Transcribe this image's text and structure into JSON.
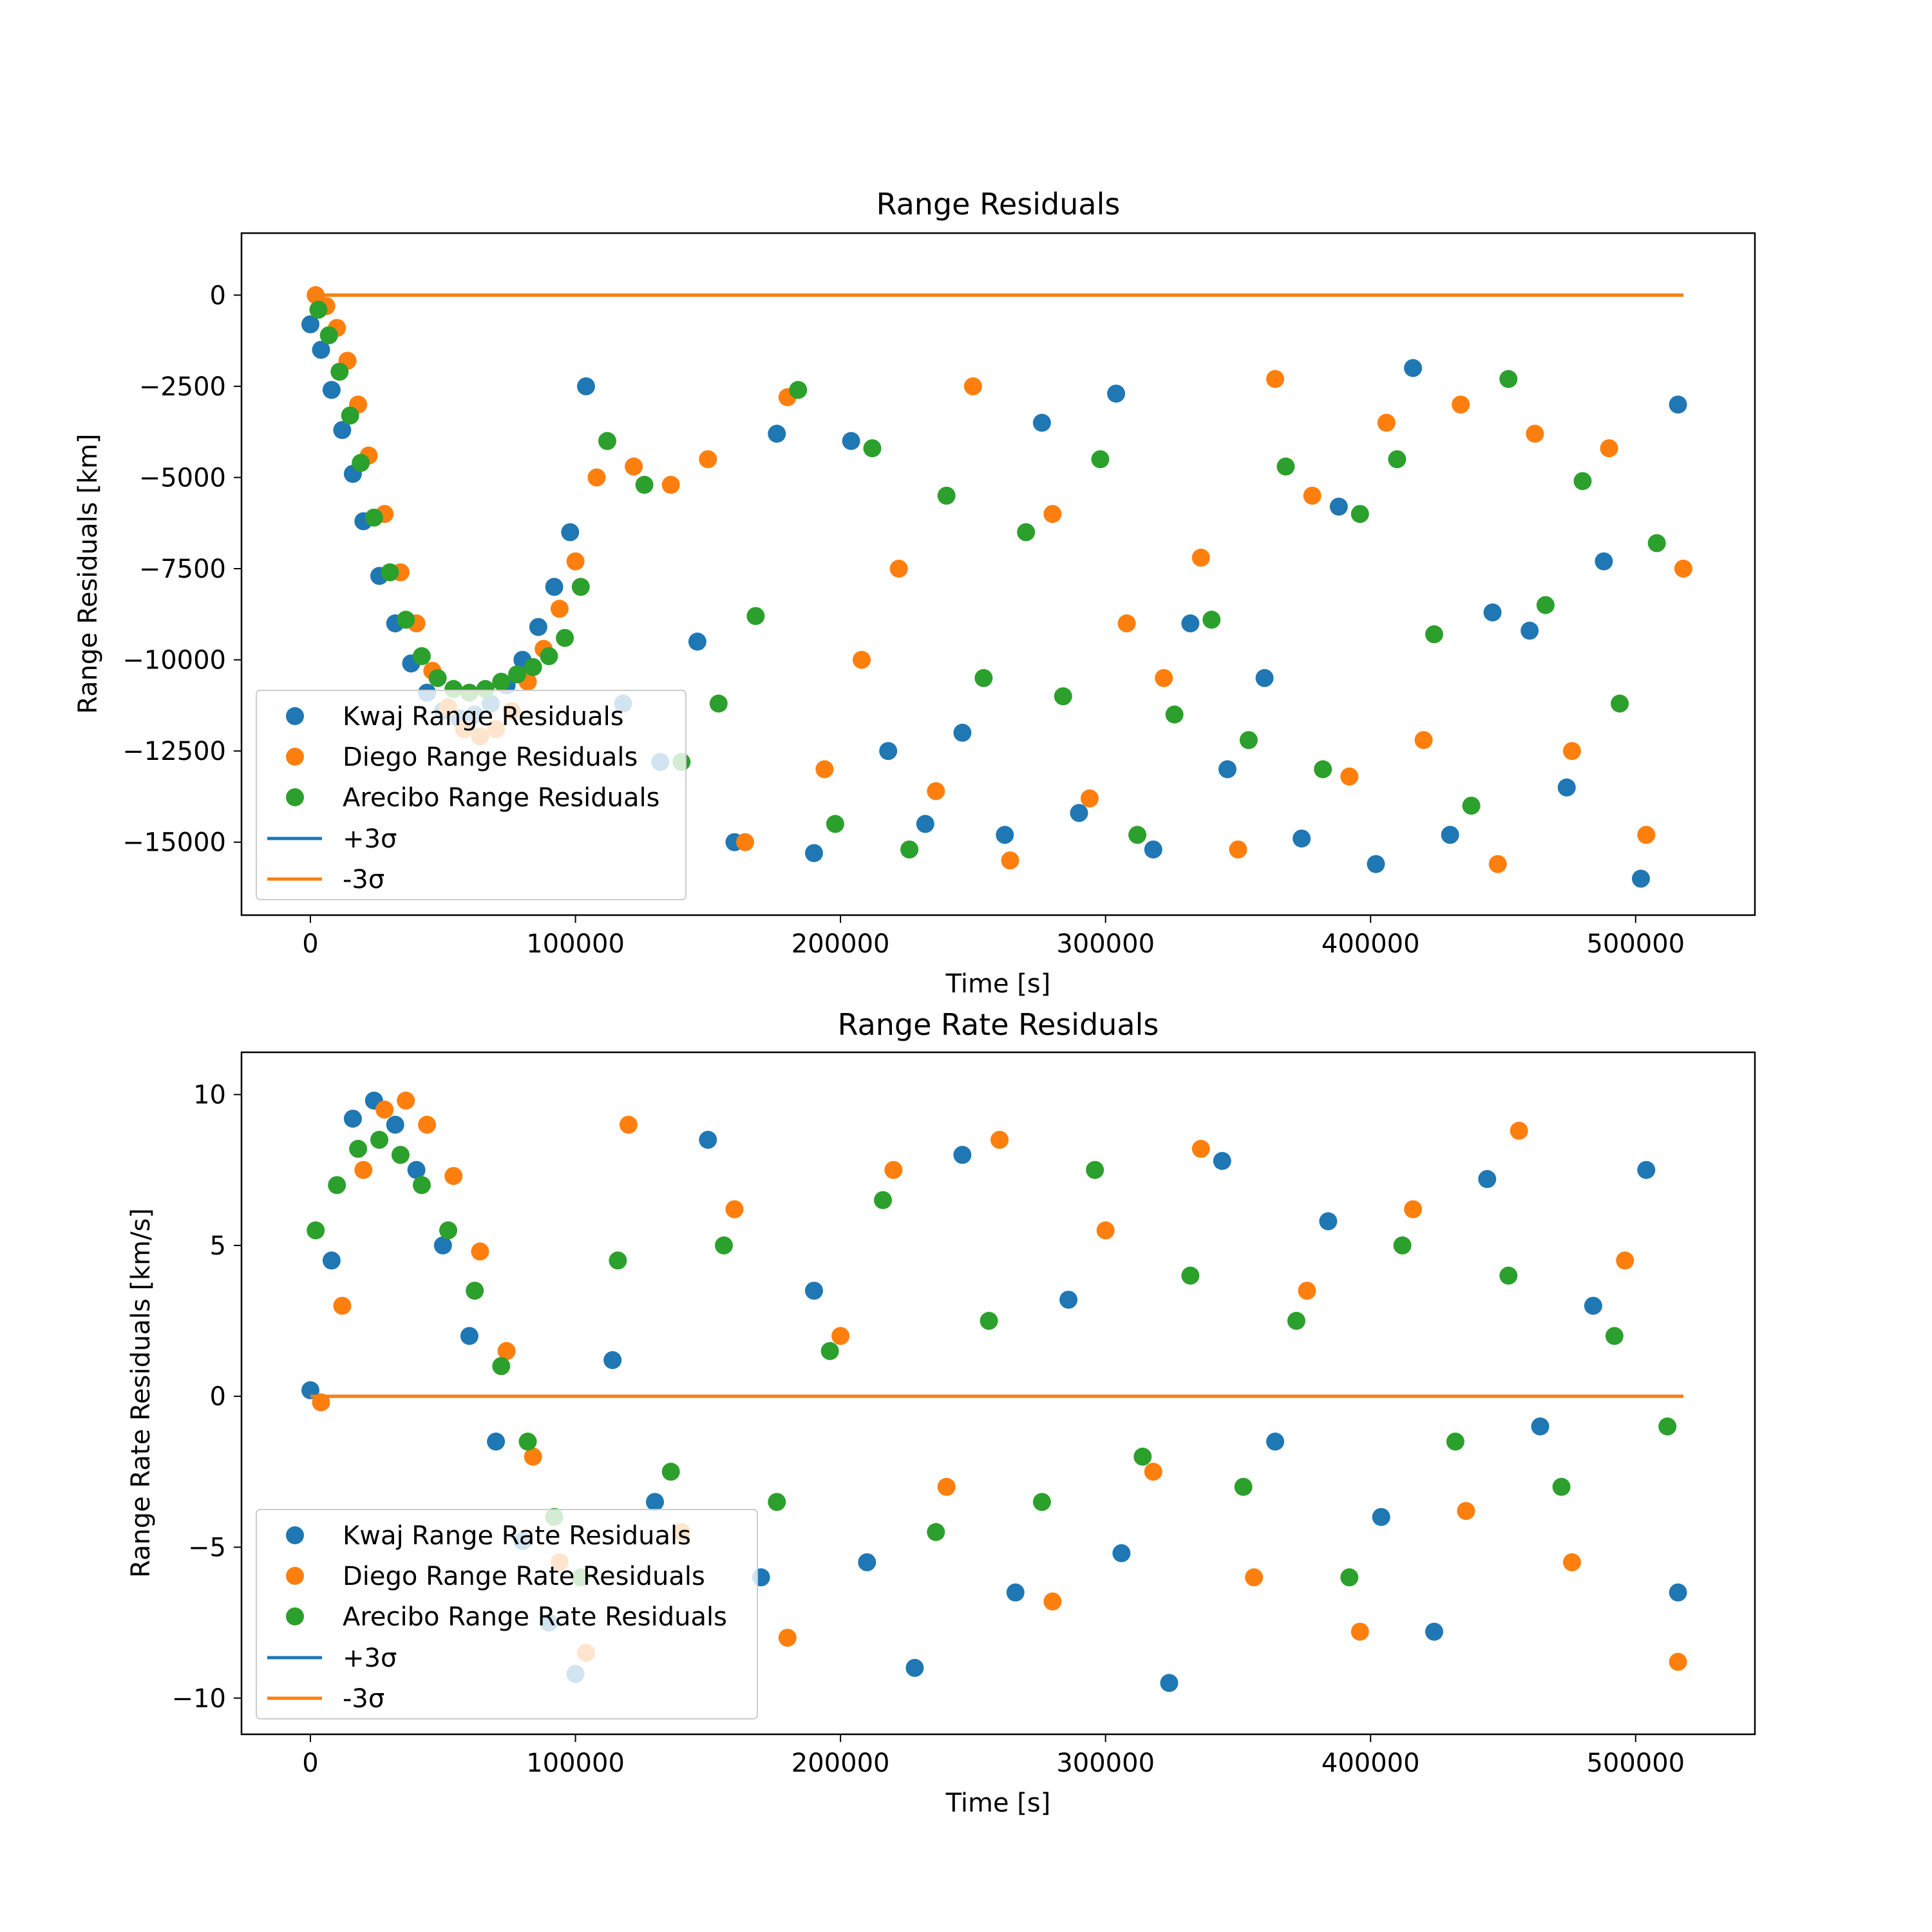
{
  "chart_data": [
    {
      "type": "scatter",
      "title": "Range Residuals",
      "xlabel": "Time [s]",
      "ylabel": "Range Residuals [km]",
      "xlim": [
        -26000,
        545000
      ],
      "ylim": [
        -17000,
        1700
      ],
      "xticks": [
        0,
        100000,
        200000,
        300000,
        400000,
        500000
      ],
      "xtick_labels": [
        "0",
        "100000",
        "200000",
        "300000",
        "400000",
        "500000"
      ],
      "yticks": [
        0,
        -2500,
        -5000,
        -7500,
        -10000,
        -12500,
        -15000
      ],
      "ytick_labels": [
        "0",
        "−2500",
        "−5000",
        "−7500",
        "−10000",
        "−12500",
        "−15000"
      ],
      "grid": false,
      "legend_position": "lower-left",
      "legend": [
        {
          "label": "Kwaj Range Residuals",
          "kind": "marker",
          "color": "#1f77b4"
        },
        {
          "label": "Diego Range Residuals",
          "kind": "marker",
          "color": "#ff7f0e"
        },
        {
          "label": "Arecibo Range Residuals",
          "kind": "marker",
          "color": "#2ca02c"
        },
        {
          "label": "+3σ",
          "kind": "line",
          "color": "#1f77b4"
        },
        {
          "label": "-3σ",
          "kind": "line",
          "color": "#ff7f0e"
        }
      ],
      "series": [
        {
          "color": "#1f77b4",
          "x": [
            0,
            4000,
            8000,
            12000,
            16000,
            20000,
            26000,
            32000,
            38000,
            44000,
            50000,
            56000,
            62000,
            68000,
            74000,
            80000,
            86000,
            92000,
            98000,
            104000,
            118000,
            132000,
            146000,
            160000,
            176000,
            190000,
            204000,
            218000,
            232000,
            246000,
            262000,
            276000,
            290000,
            304000,
            318000,
            332000,
            346000,
            360000,
            374000,
            388000,
            402000,
            416000,
            430000,
            446000,
            460000,
            474000,
            488000,
            502000,
            516000
          ],
          "y": [
            -800,
            -1500,
            -2600,
            -3700,
            -4900,
            -6200,
            -7700,
            -9000,
            -10100,
            -10900,
            -11400,
            -11600,
            -11500,
            -11200,
            -10700,
            -10000,
            -9100,
            -8000,
            -6500,
            -2500,
            -11200,
            -12800,
            -9500,
            -15000,
            -3800,
            -15300,
            -4000,
            -12500,
            -14500,
            -12000,
            -14800,
            -3500,
            -14200,
            -2700,
            -15200,
            -9000,
            -13000,
            -10500,
            -14900,
            -5800,
            -15600,
            -2000,
            -14800,
            -8700,
            -9200,
            -13500,
            -7300,
            -16000,
            -3000
          ]
        },
        {
          "color": "#ff7f0e",
          "x": [
            2000,
            6000,
            10000,
            14000,
            18000,
            22000,
            28000,
            34000,
            40000,
            46000,
            52000,
            58000,
            64000,
            70000,
            76000,
            82000,
            88000,
            94000,
            100000,
            108000,
            122000,
            136000,
            150000,
            164000,
            180000,
            194000,
            208000,
            222000,
            236000,
            250000,
            264000,
            280000,
            294000,
            308000,
            322000,
            336000,
            350000,
            364000,
            378000,
            392000,
            406000,
            420000,
            434000,
            448000,
            462000,
            476000,
            490000,
            504000,
            518000
          ],
          "y": [
            0,
            -300,
            -900,
            -1800,
            -3000,
            -4400,
            -6000,
            -7600,
            -9000,
            -10300,
            -11300,
            -11900,
            -12100,
            -11900,
            -11400,
            -10600,
            -9700,
            -8600,
            -7300,
            -5000,
            -4700,
            -5200,
            -4500,
            -15000,
            -2800,
            -13000,
            -10000,
            -7500,
            -13600,
            -2500,
            -15500,
            -6000,
            -13800,
            -9000,
            -10500,
            -7200,
            -15200,
            -2300,
            -5500,
            -13200,
            -3500,
            -12200,
            -3000,
            -15600,
            -3800,
            -12500,
            -4200,
            -14800,
            -7500
          ]
        },
        {
          "color": "#2ca02c",
          "x": [
            3000,
            7000,
            11000,
            15000,
            19000,
            24000,
            30000,
            36000,
            42000,
            48000,
            54000,
            60000,
            66000,
            72000,
            78000,
            84000,
            90000,
            96000,
            102000,
            112000,
            126000,
            140000,
            154000,
            168000,
            184000,
            198000,
            212000,
            226000,
            240000,
            254000,
            270000,
            284000,
            298000,
            312000,
            326000,
            340000,
            354000,
            368000,
            382000,
            396000,
            410000,
            424000,
            438000,
            452000,
            466000,
            480000,
            494000,
            508000
          ],
          "y": [
            -400,
            -1100,
            -2100,
            -3300,
            -4600,
            -6100,
            -7600,
            -8900,
            -9900,
            -10500,
            -10800,
            -10900,
            -10800,
            -10600,
            -10400,
            -10200,
            -9900,
            -9400,
            -8000,
            -4000,
            -5200,
            -12800,
            -11200,
            -8800,
            -2600,
            -14500,
            -4200,
            -15200,
            -5500,
            -10500,
            -6500,
            -11000,
            -4500,
            -14800,
            -11500,
            -8900,
            -12200,
            -4700,
            -13000,
            -6000,
            -4500,
            -9300,
            -14000,
            -2300,
            -8500,
            -5100,
            -11200,
            -6800
          ]
        }
      ],
      "reference_lines": [
        {
          "label": "+3σ",
          "color": "#1f77b4",
          "x": [
            0,
            518000
          ],
          "y": [
            0,
            0
          ]
        },
        {
          "label": "-3σ",
          "color": "#ff7f0e",
          "x": [
            0,
            518000
          ],
          "y": [
            0,
            0
          ]
        }
      ]
    },
    {
      "type": "scatter",
      "title": "Range Rate Residuals",
      "xlabel": "Time [s]",
      "ylabel": "Range Rate Residuals [km/s]",
      "xlim": [
        -26000,
        545000
      ],
      "ylim": [
        -11.2,
        11.4
      ],
      "xticks": [
        0,
        100000,
        200000,
        300000,
        400000,
        500000
      ],
      "xtick_labels": [
        "0",
        "100000",
        "200000",
        "300000",
        "400000",
        "500000"
      ],
      "yticks": [
        10,
        5,
        0,
        -5,
        -10
      ],
      "ytick_labels": [
        "10",
        "5",
        "0",
        "−5",
        "−10"
      ],
      "grid": false,
      "legend_position": "lower-left",
      "legend": [
        {
          "label": "Kwaj Range Rate Residuals",
          "kind": "marker",
          "color": "#1f77b4"
        },
        {
          "label": "Diego Range Rate Residuals",
          "kind": "marker",
          "color": "#ff7f0e"
        },
        {
          "label": "Arecibo Range Rate Residuals",
          "kind": "marker",
          "color": "#2ca02c"
        },
        {
          "label": "+3σ",
          "kind": "line",
          "color": "#1f77b4"
        },
        {
          "label": "-3σ",
          "kind": "line",
          "color": "#ff7f0e"
        }
      ],
      "series": [
        {
          "color": "#1f77b4",
          "x": [
            0,
            8000,
            16000,
            24000,
            32000,
            40000,
            50000,
            60000,
            70000,
            80000,
            90000,
            100000,
            114000,
            130000,
            150000,
            170000,
            190000,
            210000,
            228000,
            246000,
            266000,
            286000,
            306000,
            324000,
            344000,
            364000,
            384000,
            404000,
            424000,
            444000,
            464000,
            484000,
            504000,
            516000
          ],
          "y": [
            0.2,
            4.5,
            9.2,
            9.8,
            9.0,
            7.5,
            5.0,
            2.0,
            -1.5,
            -4.8,
            -7.5,
            -9.2,
            1.2,
            -3.5,
            8.5,
            -6.0,
            3.5,
            -5.5,
            -9.0,
            8.0,
            -6.5,
            3.2,
            -5.2,
            -9.5,
            7.8,
            -1.5,
            5.8,
            -4.0,
            -7.8,
            7.2,
            -1.0,
            3.0,
            7.5,
            -6.5
          ]
        },
        {
          "color": "#ff7f0e",
          "x": [
            4000,
            12000,
            20000,
            28000,
            36000,
            44000,
            54000,
            64000,
            74000,
            84000,
            94000,
            104000,
            120000,
            140000,
            160000,
            180000,
            200000,
            220000,
            240000,
            260000,
            280000,
            300000,
            318000,
            336000,
            356000,
            376000,
            396000,
            416000,
            436000,
            456000,
            476000,
            496000,
            516000
          ],
          "y": [
            -0.2,
            3.0,
            7.5,
            9.5,
            9.8,
            9.0,
            7.3,
            4.8,
            1.5,
            -2.0,
            -5.5,
            -8.5,
            9.0,
            -4.5,
            6.2,
            -8.0,
            2.0,
            7.5,
            -3.0,
            8.5,
            -6.8,
            5.5,
            -2.5,
            8.2,
            -6.0,
            3.5,
            -7.8,
            6.2,
            -3.8,
            8.8,
            -5.5,
            4.5,
            -8.8
          ]
        },
        {
          "color": "#2ca02c",
          "x": [
            2000,
            10000,
            18000,
            26000,
            34000,
            42000,
            52000,
            62000,
            72000,
            82000,
            92000,
            102000,
            116000,
            136000,
            156000,
            176000,
            196000,
            216000,
            236000,
            256000,
            276000,
            296000,
            314000,
            332000,
            352000,
            372000,
            392000,
            412000,
            432000,
            452000,
            472000,
            492000,
            512000
          ],
          "y": [
            5.5,
            7.0,
            8.2,
            8.5,
            8.0,
            7.0,
            5.5,
            3.5,
            1.0,
            -1.5,
            -4.0,
            -6.0,
            4.5,
            -2.5,
            5.0,
            -3.5,
            1.5,
            6.5,
            -4.5,
            2.5,
            -3.5,
            7.5,
            -2.0,
            4.0,
            -3.0,
            2.5,
            -6.0,
            5.0,
            -1.5,
            4.0,
            -3.0,
            2.0,
            -1.0
          ]
        }
      ],
      "reference_lines": [
        {
          "label": "+3σ",
          "color": "#1f77b4",
          "x": [
            0,
            518000
          ],
          "y": [
            0,
            0
          ]
        },
        {
          "label": "-3σ",
          "color": "#ff7f0e",
          "x": [
            0,
            518000
          ],
          "y": [
            0,
            0
          ]
        }
      ]
    }
  ]
}
